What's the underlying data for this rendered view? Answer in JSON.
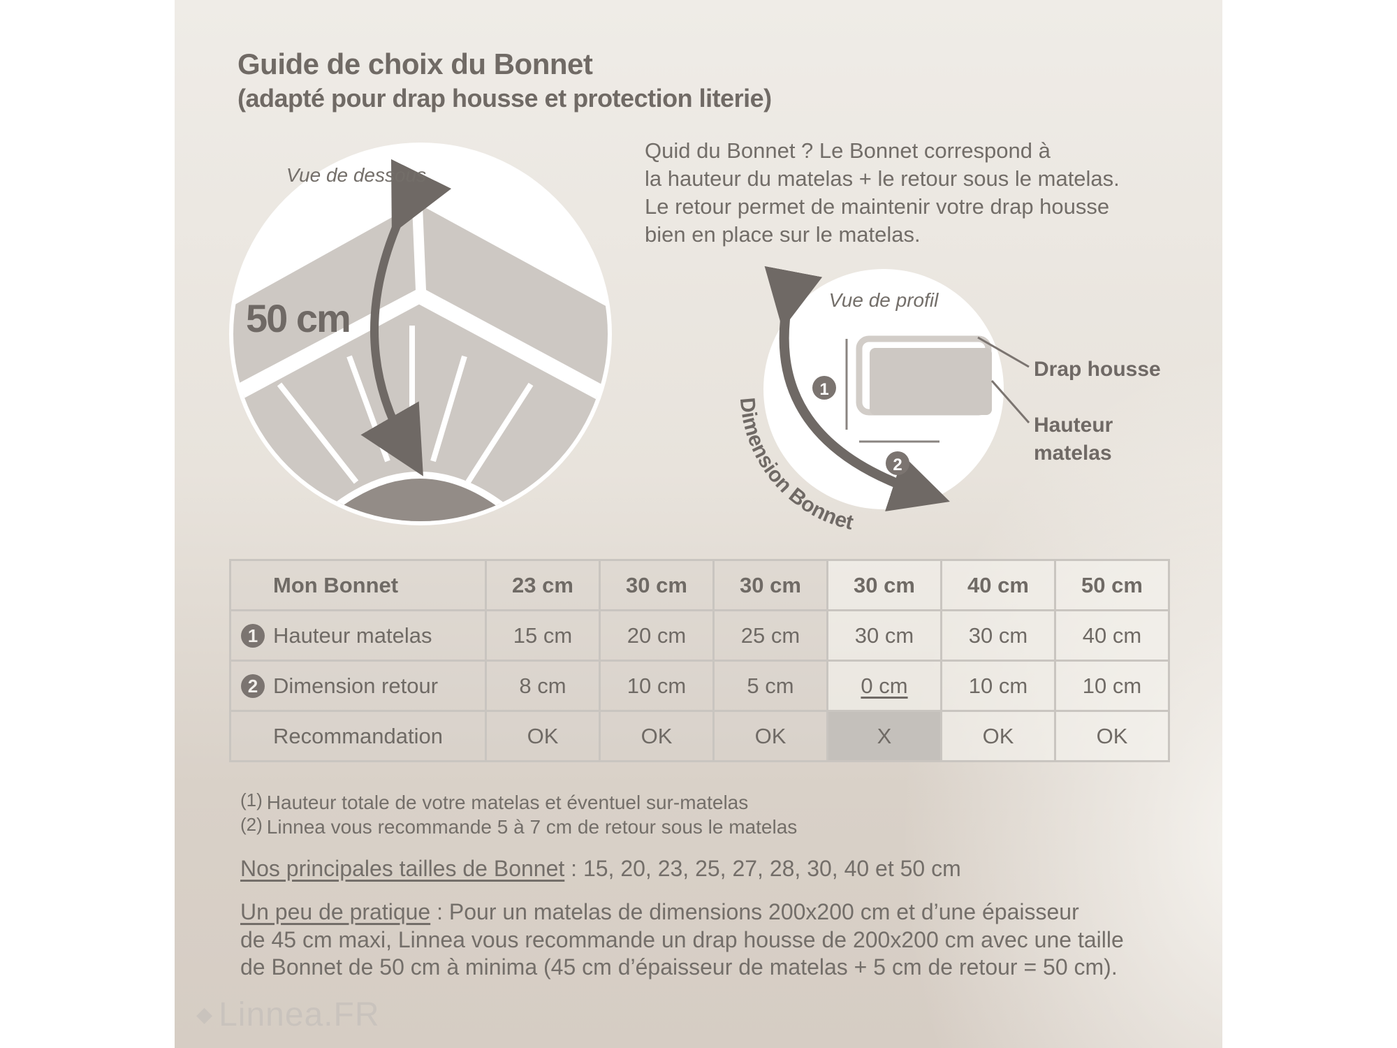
{
  "title": "Guide de choix du Bonnet",
  "subtitle": "(adapté pour drap housse et protection literie)",
  "intro": [
    "Quid du Bonnet ? Le Bonnet correspond à",
    "la hauteur du matelas + le retour sous le matelas.",
    "Le retour permet de maintenir votre drap housse",
    "bien en place sur le matelas."
  ],
  "diagram_left": {
    "caption": "Vue de dessous",
    "measure": "50 cm"
  },
  "diagram_right": {
    "caption": "Vue de profil",
    "label_sheet": "Drap housse",
    "label_height_1": "Hauteur",
    "label_height_2": "matelas",
    "arc_label": "Dimension Bonnet",
    "marker_1": "1",
    "marker_2": "2"
  },
  "table": {
    "header": [
      "Mon Bonnet",
      "23 cm",
      "30 cm",
      "30 cm",
      "30 cm",
      "40 cm",
      "50 cm"
    ],
    "rows": [
      {
        "num": "1",
        "label": "Hauteur matelas",
        "values": [
          "15 cm",
          "20 cm",
          "25 cm",
          "30 cm",
          "30 cm",
          "40 cm"
        ]
      },
      {
        "num": "2",
        "label": "Dimension retour",
        "values": [
          "8 cm",
          "10 cm",
          "5 cm",
          "0 cm",
          "10 cm",
          "10 cm"
        ]
      },
      {
        "num": "",
        "label": "Recommandation",
        "values": [
          "OK",
          "OK",
          "OK",
          "X",
          "OK",
          "OK"
        ]
      }
    ]
  },
  "footnotes": [
    {
      "mark": "(1)",
      "text": "Hauteur totale de votre matelas et éventuel sur-matelas"
    },
    {
      "mark": "(2)",
      "text": "Linnea vous recommande 5 à 7 cm de retour sous le matelas"
    }
  ],
  "sizes": {
    "label": "Nos principales tailles de Bonnet",
    "text": " : 15, 20, 23, 25, 27, 28, 30, 40 et 50 cm"
  },
  "practice": {
    "label": "Un peu de pratique",
    "line1": " : Pour un matelas de dimensions 200x200 cm et d’une épaisseur",
    "line2": "de 45 cm maxi, Linnea vous recommande un drap housse de 200x200 cm avec une taille",
    "line3": "de Bonnet de 50 cm à minima (45 cm d’épaisseur de matelas + 5 cm de retour = 50 cm)."
  },
  "logo": "Linnea.FR",
  "colors": {
    "text": "#75706b",
    "x_cell": "#c4c0bb",
    "illustration_fill": "#cdc8c3",
    "arrow": "#6f6965"
  }
}
